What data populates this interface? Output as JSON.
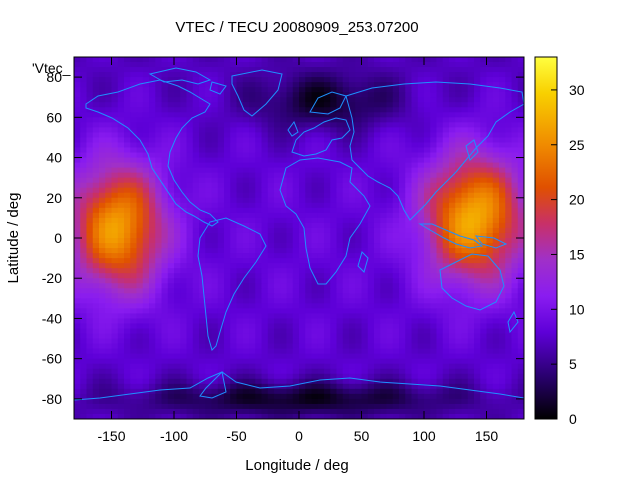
{
  "chart_data": {
    "type": "heatmap",
    "title": "VTEC / TECU 20080909_253.07200",
    "xlabel": "Longitude / deg",
    "ylabel": "Latitude / deg",
    "xlim": [
      -180,
      180
    ],
    "ylim": [
      -90,
      90
    ],
    "x_ticks": [
      -150,
      -100,
      -50,
      0,
      50,
      100,
      150
    ],
    "y_ticks": [
      -80,
      -60,
      -40,
      -20,
      0,
      20,
      40,
      60,
      80
    ],
    "legend_entry": "'Vtec_",
    "colorbar": {
      "range": [
        0,
        33
      ],
      "ticks": [
        0,
        5,
        10,
        15,
        20,
        25,
        30
      ],
      "colormap": [
        "#000000",
        "#2a0070",
        "#5e00d8",
        "#8a1cf0",
        "#a030c8",
        "#c83068",
        "#e05000",
        "#f08c00",
        "#f8d000",
        "#ffff40"
      ]
    },
    "overlay": "coastlines",
    "overlay_color": "#1e90ff",
    "grid": false,
    "background_vtec_range": [
      5,
      9
    ],
    "regions": [
      {
        "name": "equatorial anomaly west",
        "lon_center": -145,
        "lat_center": 5,
        "peak_vtec": 26
      },
      {
        "name": "equatorial anomaly east",
        "lon_center": 140,
        "lat_center": 10,
        "peak_vtec": 27
      },
      {
        "name": "arctic trough",
        "lon_center": 20,
        "lat_center": 68,
        "min_vtec": 2
      },
      {
        "name": "antarctic low",
        "lon_center": 0,
        "lat_center": -80,
        "min_vtec": 2
      }
    ]
  }
}
